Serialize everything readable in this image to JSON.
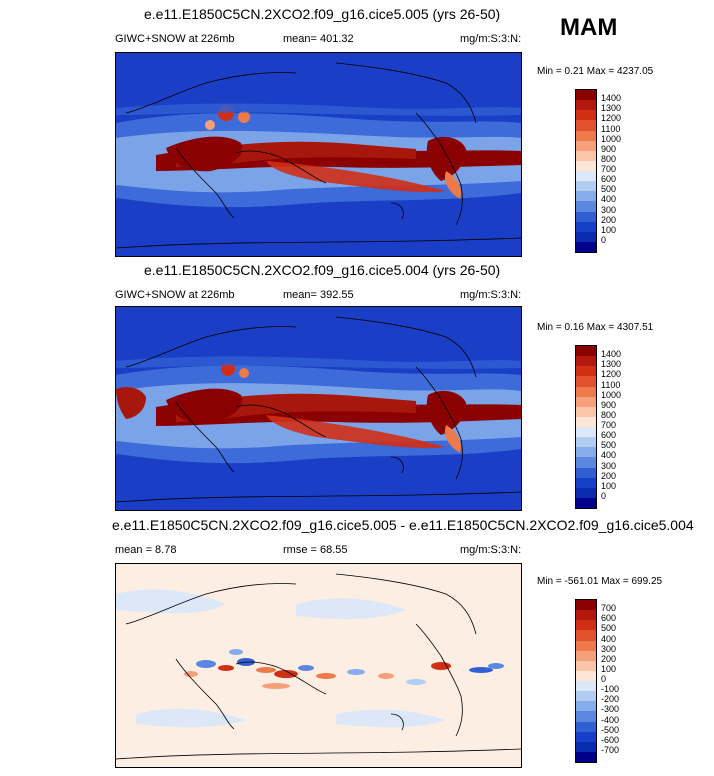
{
  "season": "MAM",
  "panels": [
    {
      "title": "e.e11.E1850C5CN.2XCO2.f09_g16.cice5.005 (yrs 26-50)",
      "variable_label": "GIWC+SNOW at 226mb",
      "stat_label": "mean= 401.32",
      "units_label": "mg/m:S:3:N:",
      "minmax_label": "Min =   0.21 Max = 4237.05",
      "kind": "field"
    },
    {
      "title": "e.e11.E1850C5CN.2XCO2.f09_g16.cice5.004 (yrs 26-50)",
      "variable_label": "GIWC+SNOW at 226mb",
      "stat_label": "mean= 392.55",
      "units_label": "mg/m:S:3:N:",
      "minmax_label": "Min =   0.16 Max = 4307.51",
      "kind": "field"
    },
    {
      "title": "e.e11.E1850C5CN.2XCO2.f09_g16.cice5.005 - e.e11.E1850C5CN.2XCO2.f09_g16.cice5.004",
      "variable_label": "mean =   8.78",
      "stat_label": "rmse =   68.55",
      "units_label": "mg/m:S:3:N:",
      "minmax_label": "Min = -561.01 Max = 699.25",
      "kind": "diff"
    }
  ],
  "colorbars": {
    "field": {
      "labels": [
        "1400",
        "1300",
        "1200",
        "1100",
        "1000",
        "900",
        "800",
        "700",
        "600",
        "500",
        "400",
        "300",
        "200",
        "100",
        "0"
      ],
      "colors": [
        "#8b0000",
        "#b2180d",
        "#d02f16",
        "#e0522b",
        "#ec7a4a",
        "#f5a07a",
        "#fbc5aa",
        "#fde6d6",
        "#dce8f8",
        "#b3cdf2",
        "#85aceb",
        "#5a87e0",
        "#3160d4",
        "#1540c8",
        "#0a2ab0",
        "#00008b"
      ]
    },
    "diff": {
      "labels": [
        "700",
        "600",
        "500",
        "400",
        "300",
        "200",
        "100",
        "0",
        "-100",
        "-200",
        "-300",
        "-400",
        "-500",
        "-600",
        "-700"
      ],
      "colors": [
        "#8b0000",
        "#b2180d",
        "#d02f16",
        "#e0522b",
        "#ec7a4a",
        "#f5a07a",
        "#fbc5aa",
        "#fde6d6",
        "#dce8f8",
        "#b3cdf2",
        "#85aceb",
        "#5a87e0",
        "#3160d4",
        "#1540c8",
        "#0a2ab0",
        "#00008b"
      ]
    }
  },
  "chart_data": [
    {
      "type": "heatmap",
      "title": "e.e11.E1850C5CN.2XCO2.f09_g16.cice5.005 (yrs 26-50)",
      "variable": "GIWC+SNOW at 226mb",
      "units": "mg/m:S:3:N:",
      "mean": 401.32,
      "min": 0.21,
      "max": 4237.05,
      "contour_levels": [
        0,
        100,
        200,
        300,
        400,
        500,
        600,
        700,
        800,
        900,
        1000,
        1100,
        1200,
        1300,
        1400
      ]
    },
    {
      "type": "heatmap",
      "title": "e.e11.E1850C5CN.2XCO2.f09_g16.cice5.004 (yrs 26-50)",
      "variable": "GIWC+SNOW at 226mb",
      "units": "mg/m:S:3:N:",
      "mean": 392.55,
      "min": 0.16,
      "max": 4307.51,
      "contour_levels": [
        0,
        100,
        200,
        300,
        400,
        500,
        600,
        700,
        800,
        900,
        1000,
        1100,
        1200,
        1300,
        1400
      ]
    },
    {
      "type": "heatmap",
      "title": "e.e11.E1850C5CN.2XCO2.f09_g16.cice5.005 - e.e11.E1850C5CN.2XCO2.f09_g16.cice5.004",
      "units": "mg/m:S:3:N:",
      "mean": 8.78,
      "rmse": 68.55,
      "min": -561.01,
      "max": 699.25,
      "contour_levels": [
        -700,
        -600,
        -500,
        -400,
        -300,
        -200,
        -100,
        0,
        100,
        200,
        300,
        400,
        500,
        600,
        700
      ]
    }
  ]
}
